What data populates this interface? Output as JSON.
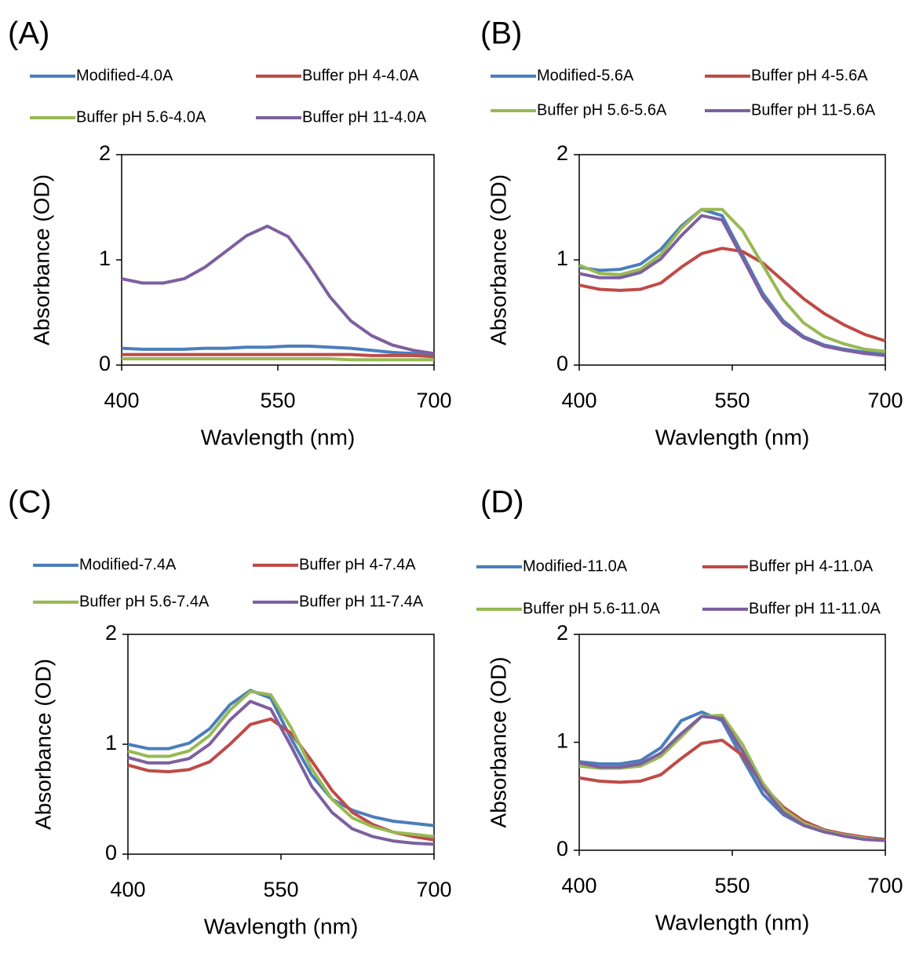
{
  "chart_data": [
    {
      "type": "line",
      "title": "(A)",
      "xlabel": "Wavlength (nm)",
      "ylabel": "Absorbance (OD)",
      "x": [
        400,
        420,
        440,
        460,
        480,
        500,
        520,
        540,
        560,
        580,
        600,
        620,
        640,
        660,
        680,
        700
      ],
      "xlim": [
        400,
        700
      ],
      "xticks": [
        400,
        550,
        700
      ],
      "ylim": [
        0,
        2
      ],
      "yticks": [
        0,
        1,
        2
      ],
      "series": [
        {
          "name": "Modified-4.0A",
          "color": "#4a7ebb",
          "values": [
            0.16,
            0.15,
            0.15,
            0.15,
            0.16,
            0.16,
            0.17,
            0.17,
            0.18,
            0.18,
            0.17,
            0.16,
            0.14,
            0.12,
            0.11,
            0.1
          ]
        },
        {
          "name": "Buffer pH 4-4.0A",
          "color": "#be4b48",
          "values": [
            0.1,
            0.1,
            0.1,
            0.1,
            0.1,
            0.1,
            0.1,
            0.1,
            0.1,
            0.1,
            0.1,
            0.1,
            0.09,
            0.09,
            0.09,
            0.08
          ]
        },
        {
          "name": "Buffer pH 5.6-4.0A",
          "color": "#98b954",
          "values": [
            0.06,
            0.06,
            0.06,
            0.06,
            0.06,
            0.06,
            0.06,
            0.06,
            0.06,
            0.06,
            0.06,
            0.05,
            0.05,
            0.05,
            0.05,
            0.05
          ]
        },
        {
          "name": "Buffer pH 11-4.0A",
          "color": "#7d60a0",
          "values": [
            0.82,
            0.78,
            0.78,
            0.82,
            0.93,
            1.08,
            1.23,
            1.32,
            1.22,
            0.95,
            0.65,
            0.42,
            0.28,
            0.19,
            0.14,
            0.11
          ]
        }
      ]
    },
    {
      "type": "line",
      "title": "(B)",
      "xlabel": "Wavlength (nm)",
      "ylabel": "Absorbance (OD)",
      "x": [
        400,
        420,
        440,
        460,
        480,
        500,
        520,
        540,
        560,
        580,
        600,
        620,
        640,
        660,
        680,
        700
      ],
      "xlim": [
        400,
        700
      ],
      "xticks": [
        400,
        550,
        700
      ],
      "ylim": [
        0,
        2
      ],
      "yticks": [
        0,
        1,
        2
      ],
      "series": [
        {
          "name": "Modified-5.6A",
          "color": "#4a7ebb",
          "values": [
            0.93,
            0.9,
            0.91,
            0.96,
            1.1,
            1.32,
            1.48,
            1.42,
            1.05,
            0.68,
            0.42,
            0.27,
            0.19,
            0.15,
            0.12,
            0.1
          ]
        },
        {
          "name": "Buffer pH 4-5.6A",
          "color": "#be4b48",
          "values": [
            0.76,
            0.72,
            0.71,
            0.72,
            0.78,
            0.93,
            1.06,
            1.11,
            1.08,
            0.97,
            0.8,
            0.63,
            0.49,
            0.38,
            0.29,
            0.23
          ]
        },
        {
          "name": "Buffer pH 5.6-5.6A",
          "color": "#98b954",
          "values": [
            0.95,
            0.87,
            0.86,
            0.91,
            1.05,
            1.3,
            1.48,
            1.48,
            1.28,
            0.95,
            0.62,
            0.4,
            0.27,
            0.2,
            0.15,
            0.13
          ]
        },
        {
          "name": "Buffer pH 11-5.6A",
          "color": "#7d60a0",
          "values": [
            0.87,
            0.83,
            0.83,
            0.88,
            1.01,
            1.23,
            1.42,
            1.38,
            1.02,
            0.65,
            0.4,
            0.26,
            0.18,
            0.14,
            0.11,
            0.09
          ]
        }
      ]
    },
    {
      "type": "line",
      "title": "(C)",
      "xlabel": "Wavlength (nm)",
      "ylabel": "Absorbance (OD)",
      "x": [
        400,
        420,
        440,
        460,
        480,
        500,
        520,
        540,
        560,
        580,
        600,
        620,
        640,
        660,
        680,
        700
      ],
      "xlim": [
        400,
        700
      ],
      "xticks": [
        400,
        550,
        700
      ],
      "ylim": [
        0,
        2
      ],
      "yticks": [
        0,
        1,
        2
      ],
      "series": [
        {
          "name": "Modified-7.4A",
          "color": "#4a7ebb",
          "values": [
            1.0,
            0.96,
            0.96,
            1.01,
            1.14,
            1.36,
            1.49,
            1.42,
            1.05,
            0.72,
            0.5,
            0.4,
            0.34,
            0.3,
            0.28,
            0.26
          ]
        },
        {
          "name": "Buffer pH 4-7.4A",
          "color": "#be4b48",
          "values": [
            0.81,
            0.76,
            0.75,
            0.77,
            0.84,
            1.0,
            1.18,
            1.23,
            1.1,
            0.85,
            0.58,
            0.38,
            0.27,
            0.2,
            0.16,
            0.13
          ]
        },
        {
          "name": "Buffer pH 5.6-7.4A",
          "color": "#98b954",
          "values": [
            0.94,
            0.89,
            0.89,
            0.94,
            1.08,
            1.31,
            1.48,
            1.45,
            1.15,
            0.78,
            0.5,
            0.33,
            0.25,
            0.2,
            0.18,
            0.16
          ]
        },
        {
          "name": "Buffer pH 11-7.4A",
          "color": "#7d60a0",
          "values": [
            0.88,
            0.83,
            0.83,
            0.87,
            1.0,
            1.22,
            1.39,
            1.32,
            0.98,
            0.62,
            0.38,
            0.23,
            0.16,
            0.12,
            0.1,
            0.09
          ]
        }
      ]
    },
    {
      "type": "line",
      "title": "(D)",
      "xlabel": "Wavlength (nm)",
      "ylabel": "Absorbance (OD)",
      "x": [
        400,
        420,
        440,
        460,
        480,
        500,
        520,
        540,
        560,
        580,
        600,
        620,
        640,
        660,
        680,
        700
      ],
      "xlim": [
        400,
        700
      ],
      "xticks": [
        400,
        550,
        700
      ],
      "ylim": [
        0,
        2
      ],
      "yticks": [
        0,
        1,
        2
      ],
      "series": [
        {
          "name": "Modified-11.0A",
          "color": "#4a7ebb",
          "values": [
            0.82,
            0.8,
            0.8,
            0.83,
            0.95,
            1.2,
            1.28,
            1.2,
            0.85,
            0.52,
            0.33,
            0.23,
            0.17,
            0.14,
            0.11,
            0.09
          ]
        },
        {
          "name": "Buffer pH 4-11.0A",
          "color": "#be4b48",
          "values": [
            0.67,
            0.64,
            0.63,
            0.64,
            0.7,
            0.85,
            0.99,
            1.02,
            0.88,
            0.6,
            0.4,
            0.27,
            0.19,
            0.15,
            0.12,
            0.1
          ]
        },
        {
          "name": "Buffer pH 5.6-11.0A",
          "color": "#98b954",
          "values": [
            0.78,
            0.76,
            0.76,
            0.78,
            0.87,
            1.05,
            1.24,
            1.25,
            0.98,
            0.62,
            0.38,
            0.25,
            0.18,
            0.14,
            0.11,
            0.09
          ]
        },
        {
          "name": "Buffer pH 11-11.0A",
          "color": "#7d60a0",
          "values": [
            0.81,
            0.77,
            0.77,
            0.8,
            0.9,
            1.08,
            1.24,
            1.22,
            0.92,
            0.58,
            0.35,
            0.23,
            0.17,
            0.13,
            0.1,
            0.09
          ]
        }
      ]
    }
  ]
}
